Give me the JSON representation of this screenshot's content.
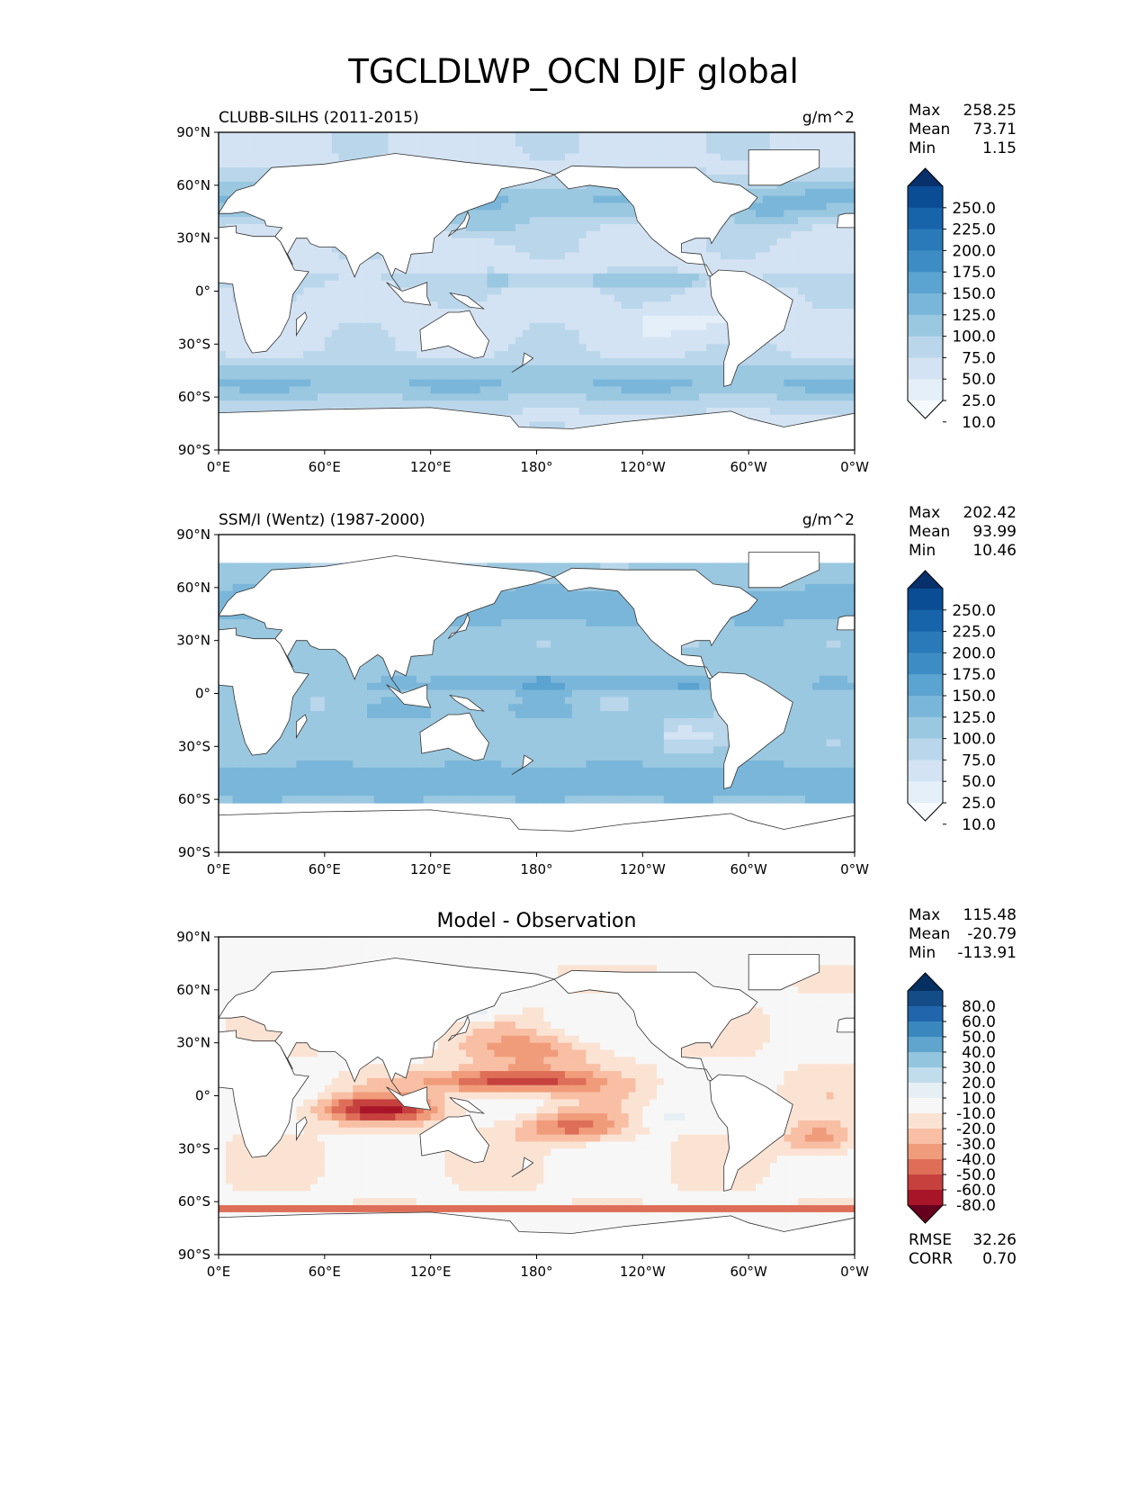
{
  "figure": {
    "title": "TGCLDLWP_OCN DJF global"
  },
  "chart_data": [
    {
      "type": "heatmap",
      "name": "model",
      "title_left": "CLUBB-SILHS (2011-2015)",
      "title_center": "",
      "title_right": "g/m^2",
      "stats": [
        {
          "label": "Max",
          "value": "258.25"
        },
        {
          "label": "Mean",
          "value": "73.71"
        },
        {
          "label": "Min",
          "value": "1.15"
        }
      ],
      "colorbar": {
        "labels": [
          "250.0",
          "225.0",
          "200.0",
          "175.0",
          "150.0",
          "125.0",
          "100.0",
          "75.0",
          "50.0",
          "25.0",
          "10.0"
        ],
        "colors": [
          "#08306b",
          "#0b4d94",
          "#1764ab",
          "#2a7ab9",
          "#3d8dc4",
          "#5ba3d0",
          "#7ab6d9",
          "#9ac8e0",
          "#bad6eb",
          "#d3e3f3",
          "#e4eff9",
          "#f7fbff"
        ],
        "extend": "both"
      },
      "x_ticks": [
        "0°E",
        "60°E",
        "120°E",
        "180°",
        "120°W",
        "60°W",
        "0°W"
      ],
      "y_ticks": [
        "90°N",
        "60°N",
        "30°N",
        "0°",
        "30°S",
        "60°S",
        "90°S"
      ],
      "xlim": [
        0,
        360
      ],
      "ylim": [
        -90,
        90
      ]
    },
    {
      "type": "heatmap",
      "name": "obs",
      "title_left": "SSM/I (Wentz) (1987-2000)",
      "title_center": "",
      "title_right": "g/m^2",
      "stats": [
        {
          "label": "Max",
          "value": "202.42"
        },
        {
          "label": "Mean",
          "value": "93.99"
        },
        {
          "label": "Min",
          "value": "10.46"
        }
      ],
      "colorbar": {
        "labels": [
          "250.0",
          "225.0",
          "200.0",
          "175.0",
          "150.0",
          "125.0",
          "100.0",
          "75.0",
          "50.0",
          "25.0",
          "10.0"
        ],
        "colors": [
          "#08306b",
          "#0b4d94",
          "#1764ab",
          "#2a7ab9",
          "#3d8dc4",
          "#5ba3d0",
          "#7ab6d9",
          "#9ac8e0",
          "#bad6eb",
          "#d3e3f3",
          "#e4eff9",
          "#f7fbff"
        ],
        "extend": "both"
      },
      "x_ticks": [
        "0°E",
        "60°E",
        "120°E",
        "180°",
        "120°W",
        "60°W",
        "0°W"
      ],
      "y_ticks": [
        "90°N",
        "60°N",
        "30°N",
        "0°",
        "30°S",
        "60°S",
        "90°S"
      ],
      "xlim": [
        0,
        360
      ],
      "ylim": [
        -90,
        90
      ]
    },
    {
      "type": "heatmap",
      "name": "diff",
      "title_left": "",
      "title_center": "Model - Observation",
      "title_right": "",
      "stats": [
        {
          "label": "Max",
          "value": "115.48"
        },
        {
          "label": "Mean",
          "value": "-20.79"
        },
        {
          "label": "Min",
          "value": "-113.91"
        }
      ],
      "extra_stats": [
        {
          "label": "RMSE",
          "value": "32.26"
        },
        {
          "label": "CORR",
          "value": "0.70"
        }
      ],
      "colorbar": {
        "labels": [
          "80.0",
          "60.0",
          "50.0",
          "40.0",
          "30.0",
          "20.0",
          "10.0",
          "-10.0",
          "-20.0",
          "-30.0",
          "-40.0",
          "-50.0",
          "-60.0",
          "-80.0"
        ],
        "colors": [
          "#053061",
          "#134c87",
          "#2166ac",
          "#3a87bd",
          "#5fa5cd",
          "#93c6de",
          "#c1ddec",
          "#e6eff4",
          "#f7f7f7",
          "#fbe3d4",
          "#f8bfa4",
          "#f09c7b",
          "#de6e58",
          "#c6413e",
          "#a81529",
          "#67001f"
        ],
        "extend": "both"
      },
      "x_ticks": [
        "0°E",
        "60°E",
        "120°E",
        "180°",
        "120°W",
        "60°W",
        "0°W"
      ],
      "y_ticks": [
        "90°N",
        "60°N",
        "30°N",
        "0°",
        "30°S",
        "60°S",
        "90°S"
      ],
      "xlim": [
        0,
        360
      ],
      "ylim": [
        -90,
        90
      ]
    }
  ]
}
